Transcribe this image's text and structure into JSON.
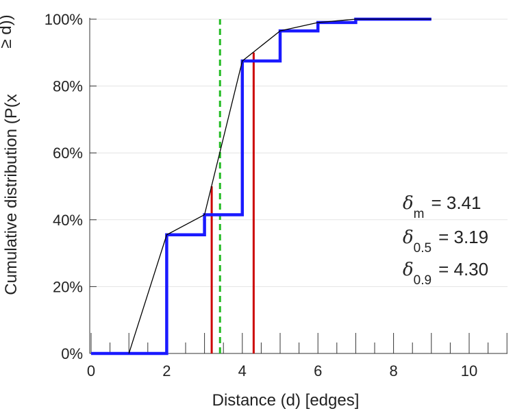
{
  "chart_data": {
    "type": "line",
    "title": "",
    "xlabel": "Distance (d) [edges]",
    "ylabel": "Cumulative distribution (P(x ≥ d))",
    "xlim": [
      0,
      11
    ],
    "ylim": [
      0,
      100
    ],
    "x_ticks": [
      "0",
      "2",
      "4",
      "6",
      "8",
      "10"
    ],
    "x_tick_values": [
      0,
      2,
      4,
      6,
      8,
      10
    ],
    "y_ticks": [
      "0%",
      "20%",
      "40%",
      "60%",
      "80%",
      "100%"
    ],
    "y_tick_values": [
      0,
      20,
      40,
      60,
      80,
      100
    ],
    "grid": true,
    "series": [
      {
        "kind": "step",
        "color": "#1a1aff",
        "x": [
          0,
          1,
          2,
          3,
          4,
          5,
          6,
          7,
          8,
          9
        ],
        "y": [
          0,
          0,
          35.5,
          41.5,
          87.5,
          96.5,
          99.0,
          100,
          100,
          100
        ]
      },
      {
        "kind": "line",
        "color": "#000000",
        "x": [
          1,
          2,
          3,
          4,
          5,
          6,
          7,
          8,
          9
        ],
        "y": [
          0,
          35.5,
          41.5,
          87.5,
          96.5,
          99.0,
          100,
          100,
          100
        ]
      }
    ],
    "vlines": [
      {
        "x": 3.41,
        "y_top": 100,
        "color": "#22bb22",
        "style": "dashed"
      },
      {
        "x": 3.19,
        "y_top": 50,
        "color": "#cc0000",
        "style": "solid"
      },
      {
        "x": 4.3,
        "y_top": 90,
        "color": "#cc0000",
        "style": "solid"
      }
    ],
    "annotations": [
      {
        "symbol": "δ",
        "sub": "m",
        "text": "= 3.41"
      },
      {
        "symbol": "δ",
        "sub": "0.5",
        "text": "= 3.19"
      },
      {
        "symbol": "δ",
        "sub": "0.9",
        "text": "= 4.30"
      }
    ],
    "minor_x_ticks": [
      0,
      0.5,
      1,
      1.5,
      2,
      2.5,
      3,
      3.5,
      4,
      4.5,
      5,
      5.5,
      6,
      6.5,
      7,
      7.5,
      8,
      8.5,
      9,
      9.5,
      10,
      10.5,
      11
    ]
  }
}
